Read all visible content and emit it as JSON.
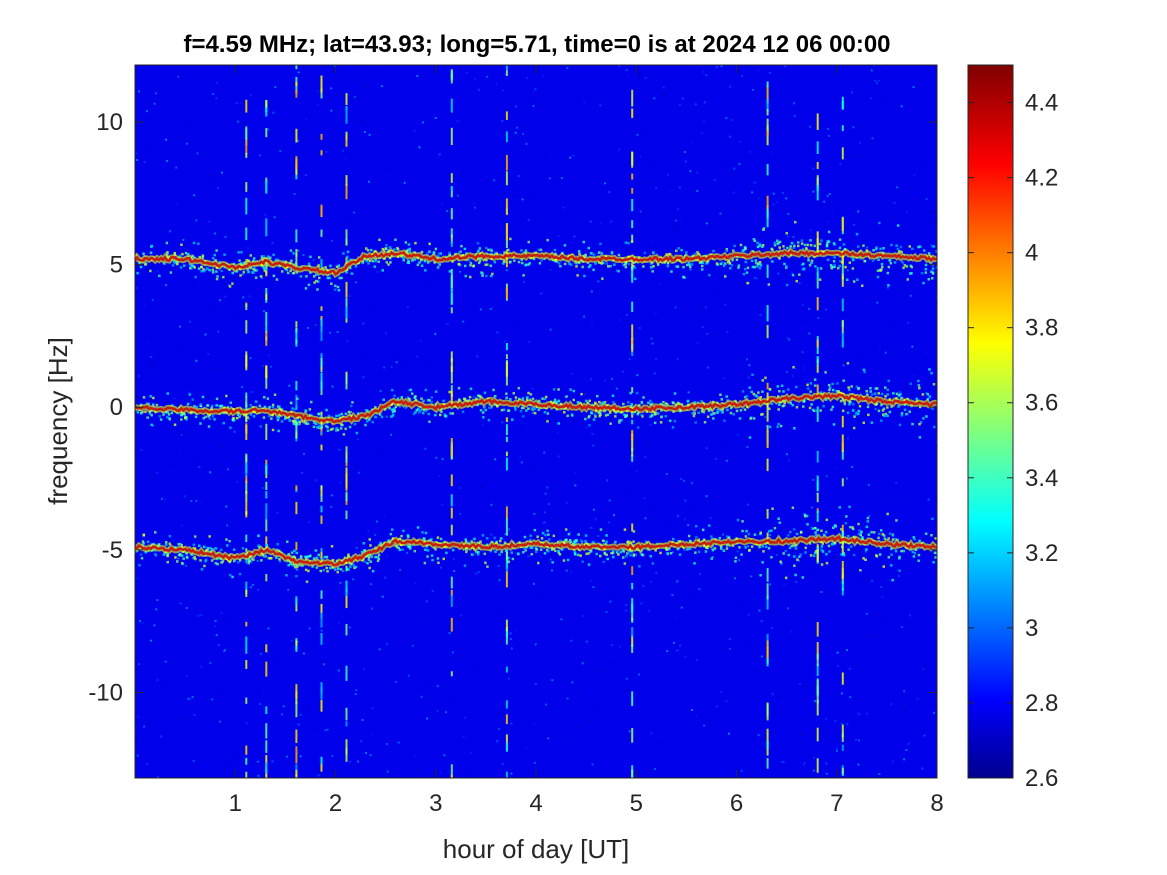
{
  "chart_data": {
    "type": "heatmap",
    "title": "f=4.59 MHz;  lat=43.93; long=5.71, time=0 is at 2024 12 06 00:00",
    "xlabel": "hour of day [UT]",
    "ylabel": "frequency [Hz]",
    "xlim": [
      0,
      8
    ],
    "ylim": [
      -13,
      12
    ],
    "x_ticks": [
      1,
      2,
      3,
      4,
      5,
      6,
      7,
      8
    ],
    "x_tick_labels": [
      "1",
      "2",
      "3",
      "4",
      "5",
      "6",
      "7",
      "8"
    ],
    "y_ticks": [
      -10,
      -5,
      0,
      5,
      10
    ],
    "y_tick_labels": [
      "-10",
      "-5",
      "0",
      "5",
      "10"
    ],
    "colorbar": {
      "colormap": "jet",
      "range": [
        2.6,
        4.5
      ],
      "ticks": [
        2.6,
        2.8,
        3.0,
        3.2,
        3.4,
        3.6,
        3.8,
        4.0,
        4.2,
        4.4
      ],
      "tick_labels": [
        "2.6",
        "2.8",
        "3",
        "3.2",
        "3.4",
        "3.6",
        "3.8",
        "4",
        "4.2",
        "4.4"
      ]
    },
    "background_level": 2.8,
    "series": [
      {
        "x": [
          0,
          0.5,
          1.0,
          1.3,
          1.6,
          2.0,
          2.3,
          2.6,
          3.0,
          3.5,
          4.0,
          4.5,
          5.0,
          5.5,
          6.0,
          6.5,
          7.0,
          7.5,
          8.0
        ],
        "y": [
          5.2,
          5.2,
          4.9,
          5.1,
          4.9,
          4.7,
          5.3,
          5.4,
          5.2,
          5.3,
          5.3,
          5.2,
          5.2,
          5.2,
          5.3,
          5.4,
          5.4,
          5.3,
          5.2
        ]
      },
      {
        "x": [
          0,
          0.5,
          1.0,
          1.3,
          1.6,
          2.0,
          2.3,
          2.6,
          3.0,
          3.5,
          4.0,
          4.5,
          5.0,
          5.5,
          6.0,
          6.5,
          7.0,
          7.5,
          8.0
        ],
        "y": [
          0.0,
          -0.1,
          -0.15,
          -0.1,
          -0.3,
          -0.5,
          -0.3,
          0.2,
          0.0,
          0.2,
          0.1,
          0.0,
          -0.05,
          0.0,
          0.1,
          0.3,
          0.4,
          0.2,
          0.1
        ]
      },
      {
        "x": [
          0,
          0.5,
          1.0,
          1.3,
          1.6,
          2.0,
          2.3,
          2.6,
          3.0,
          3.5,
          4.0,
          4.5,
          5.0,
          5.5,
          6.0,
          6.5,
          7.0,
          7.5,
          8.0
        ],
        "y": [
          -4.9,
          -5.0,
          -5.3,
          -5.0,
          -5.4,
          -5.5,
          -5.2,
          -4.7,
          -4.8,
          -4.9,
          -4.8,
          -4.9,
          -4.9,
          -4.8,
          -4.7,
          -4.7,
          -4.6,
          -4.8,
          -4.9
        ]
      }
    ]
  }
}
